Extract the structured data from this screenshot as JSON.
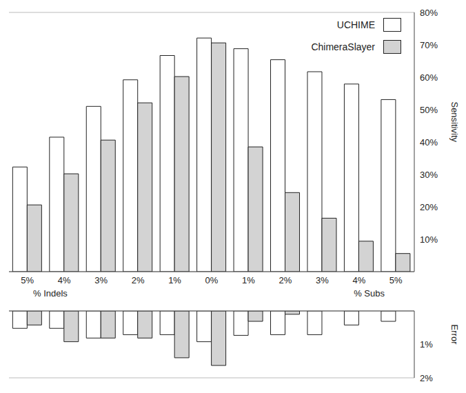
{
  "chart_data": [
    {
      "type": "bar",
      "y_label": "Sensitivity",
      "annotations": [
        "% Indels",
        "% Subs"
      ],
      "categories": [
        "5%",
        "4%",
        "3%",
        "2%",
        "1%",
        "0%",
        "1%",
        "2%",
        "3%",
        "4%",
        "5%"
      ],
      "series": [
        {
          "name": "UCHIME",
          "color": "#ffffff",
          "values": [
            32.3,
            41.5,
            51,
            59.2,
            66.7,
            72.1,
            68.8,
            65.4,
            61.7,
            57.9,
            53.1
          ]
        },
        {
          "name": "ChimeraSlayer",
          "color": "#d3d3d3",
          "values": [
            20.6,
            30.2,
            40.6,
            52.1,
            60.2,
            70.6,
            38.5,
            24.4,
            16.5,
            9.4,
            5.6
          ]
        }
      ],
      "ylim": [
        0,
        80
      ],
      "yticks": [
        {
          "value": 10,
          "label": "10%"
        },
        {
          "value": 20,
          "label": "20%"
        },
        {
          "value": 30,
          "label": "30%"
        },
        {
          "value": 40,
          "label": "40%"
        },
        {
          "value": 50,
          "label": "50%"
        },
        {
          "value": 60,
          "label": "60%"
        },
        {
          "value": 70,
          "label": "70%"
        },
        {
          "value": 80,
          "label": "80%"
        }
      ],
      "grid": true,
      "legend": "top-right"
    },
    {
      "type": "bar",
      "y_label": "Error",
      "categories": [
        null,
        null,
        null,
        null,
        null,
        null,
        null,
        null,
        null,
        null,
        null
      ],
      "series": [
        {
          "name": "UCHIME",
          "color": "#ffffff",
          "values": [
            0.52,
            0.52,
            0.81,
            0.71,
            0.71,
            0.92,
            0.73,
            0.71,
            0.71,
            0.42,
            0.31
          ]
        },
        {
          "name": "ChimeraSlayer",
          "color": "#d3d3d3",
          "values": [
            0.42,
            0.92,
            0.81,
            0.81,
            1.4,
            1.63,
            0.31,
            0.1,
            0,
            0,
            0
          ]
        }
      ],
      "ylim": [
        0,
        2
      ],
      "yticks": [
        {
          "value": 1,
          "label": "1%"
        },
        {
          "value": 2,
          "label": "2%"
        }
      ],
      "grid": true,
      "tick_labels": "y"
    }
  ]
}
